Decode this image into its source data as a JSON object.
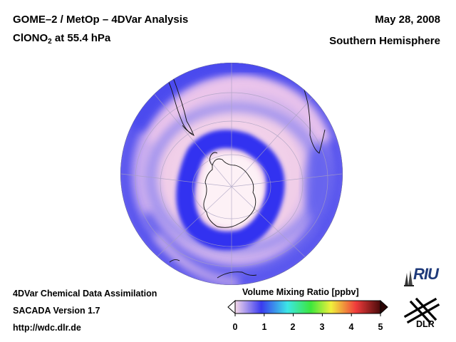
{
  "header": {
    "title_line1": "GOME–2 / MetOp – 4DVar Analysis",
    "species_prefix": "ClONO",
    "species_subscript": "2",
    "species_suffix": " at 55.4 hPa",
    "date": "May 28, 2008",
    "region": "Southern Hemisphere"
  },
  "footer": {
    "line1": "4DVar Chemical Data Assimilation",
    "line2": "SACADA Version 1.7",
    "line3": "http://wdc.dlr.de"
  },
  "colorbar": {
    "title": "Volume Mixing Ratio [ppbv]",
    "ticks": [
      "0",
      "1",
      "2",
      "3",
      "4",
      "5"
    ],
    "range": [
      0,
      5
    ],
    "colors": [
      "#f6d9ea",
      "#3a3aef",
      "#3ce6e6",
      "#3ce63c",
      "#f0f03c",
      "#f03c3c",
      "#4a0a0a"
    ]
  },
  "logos": {
    "riu": "RIU",
    "dlr": "DLR"
  },
  "map": {
    "projection": "orthographic, south polar view",
    "colors": {
      "ocean_low": "#f3d4ea",
      "high_band": "#3f3ff0",
      "mid": "#9a8cf2",
      "antarctica": "#fdf2f5"
    }
  }
}
